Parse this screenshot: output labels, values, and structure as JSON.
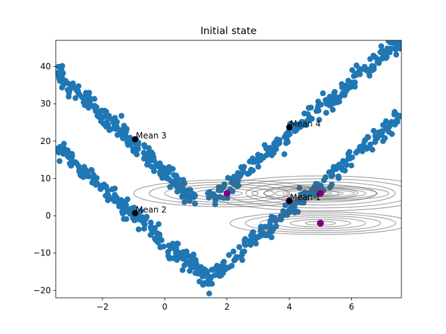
{
  "chart_data": {
    "type": "scatter",
    "title": "Initial state",
    "xlabel": "",
    "ylabel": "",
    "xlim": [
      -3.5,
      7.6
    ],
    "ylim": [
      -22,
      47
    ],
    "xticks": [
      -2,
      0,
      2,
      4,
      6
    ],
    "yticks": [
      -20,
      -10,
      0,
      10,
      20,
      30,
      40
    ],
    "grid": false,
    "legend": "none",
    "colors": {
      "points": "#1f77b4",
      "means": "#000000",
      "centers": "#800080",
      "contours": "#5a5a5a"
    },
    "point_lines": [
      {
        "x0": -3.5,
        "y0": 38.5,
        "x1": 1.0,
        "y1": 4.0
      },
      {
        "x0": 1.5,
        "y0": 4.5,
        "x1": 7.6,
        "y1": 47.0
      },
      {
        "x0": -3.5,
        "y0": 18.5,
        "x1": 1.4,
        "y1": -17.0
      },
      {
        "x0": 1.4,
        "y0": -17.0,
        "x1": 7.6,
        "y1": 27.0
      }
    ],
    "means": [
      {
        "label": "Mean 1",
        "x": 4.0,
        "y": 4.0
      },
      {
        "label": "Mean 2",
        "x": -0.95,
        "y": 0.7
      },
      {
        "label": "Mean 3",
        "x": -0.95,
        "y": 20.5
      },
      {
        "label": "Mean 4",
        "x": 4.0,
        "y": 23.7
      }
    ],
    "centers": [
      {
        "x": 2.0,
        "y": 6.0
      },
      {
        "x": 5.0,
        "y": 6.0
      },
      {
        "x": 5.0,
        "y": -2.0
      },
      {
        "x": 4.0,
        "y": 4.0
      }
    ],
    "contours": [
      {
        "cx": 5.0,
        "cy": 6.0,
        "rx": 3.6,
        "ry": 8.5
      },
      {
        "cx": 2.0,
        "cy": 6.0,
        "rx": 3.0,
        "ry": 6.5
      },
      {
        "cx": 5.0,
        "cy": -2.0,
        "rx": 2.9,
        "ry": 5.5
      },
      {
        "cx": 5.0,
        "cy": 6.0,
        "rx": 2.2,
        "ry": 3.5
      }
    ]
  }
}
